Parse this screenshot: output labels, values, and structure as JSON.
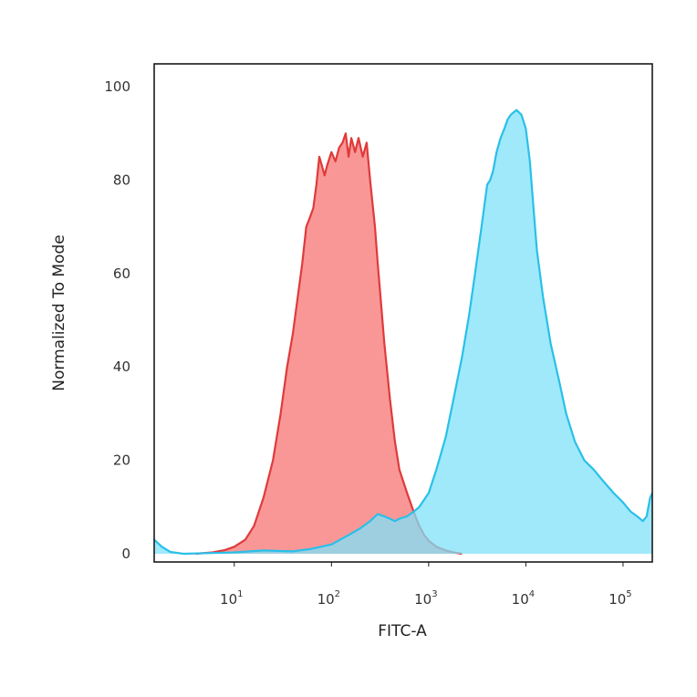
{
  "chart_data": {
    "type": "area",
    "xlabel": "FITC-A",
    "ylabel": "Normalized To Mode",
    "xscale": "log",
    "xlim": [
      1.5,
      200000
    ],
    "ylim": [
      0,
      100
    ],
    "x_ticks": [
      {
        "value": 10,
        "base": "10",
        "exp": "1"
      },
      {
        "value": 100,
        "base": "10",
        "exp": "2"
      },
      {
        "value": 1000,
        "base": "10",
        "exp": "3"
      },
      {
        "value": 10000,
        "base": "10",
        "exp": "4"
      },
      {
        "value": 100000,
        "base": "10",
        "exp": "5"
      }
    ],
    "y_ticks": [
      0,
      20,
      40,
      60,
      80,
      100
    ],
    "grid": false,
    "legend": "none",
    "series": [
      {
        "color": "#e03a3a",
        "fill": "#f99797",
        "points": [
          [
            4,
            0
          ],
          [
            6,
            0.3
          ],
          [
            8,
            0.8
          ],
          [
            10,
            1.5
          ],
          [
            13,
            3
          ],
          [
            16,
            6
          ],
          [
            20,
            12
          ],
          [
            25,
            20
          ],
          [
            30,
            30
          ],
          [
            35,
            40
          ],
          [
            40,
            47
          ],
          [
            45,
            55
          ],
          [
            50,
            62
          ],
          [
            55,
            70
          ],
          [
            60,
            72
          ],
          [
            65,
            74
          ],
          [
            70,
            79
          ],
          [
            75,
            85
          ],
          [
            80,
            83
          ],
          [
            85,
            81
          ],
          [
            90,
            83
          ],
          [
            100,
            86
          ],
          [
            110,
            84
          ],
          [
            120,
            87
          ],
          [
            130,
            88
          ],
          [
            140,
            90
          ],
          [
            150,
            85
          ],
          [
            160,
            89
          ],
          [
            175,
            86
          ],
          [
            190,
            89
          ],
          [
            210,
            85
          ],
          [
            230,
            88
          ],
          [
            250,
            80
          ],
          [
            280,
            70
          ],
          [
            300,
            62
          ],
          [
            320,
            55
          ],
          [
            350,
            45
          ],
          [
            400,
            33
          ],
          [
            450,
            24
          ],
          [
            500,
            18
          ],
          [
            600,
            13
          ],
          [
            700,
            9
          ],
          [
            800,
            6
          ],
          [
            900,
            4
          ],
          [
            1000,
            2.8
          ],
          [
            1200,
            1.5
          ],
          [
            1500,
            0.7
          ],
          [
            1800,
            0.3
          ],
          [
            2200,
            0
          ]
        ]
      },
      {
        "color": "#29c0e8",
        "fill": "#7fe2fa",
        "points": [
          [
            1.5,
            3
          ],
          [
            1.8,
            1.5
          ],
          [
            2.2,
            0.4
          ],
          [
            3,
            0
          ],
          [
            10,
            0.3
          ],
          [
            20,
            0.7
          ],
          [
            40,
            0.5
          ],
          [
            60,
            1
          ],
          [
            100,
            2
          ],
          [
            150,
            4
          ],
          [
            200,
            5.5
          ],
          [
            250,
            7
          ],
          [
            300,
            8.5
          ],
          [
            350,
            8
          ],
          [
            400,
            7.5
          ],
          [
            450,
            7
          ],
          [
            500,
            7.5
          ],
          [
            600,
            8
          ],
          [
            700,
            9
          ],
          [
            800,
            10
          ],
          [
            1000,
            13
          ],
          [
            1200,
            18
          ],
          [
            1500,
            25
          ],
          [
            1800,
            33
          ],
          [
            2200,
            42
          ],
          [
            2600,
            51
          ],
          [
            3000,
            60
          ],
          [
            3500,
            70
          ],
          [
            4000,
            79
          ],
          [
            4300,
            80
          ],
          [
            4600,
            82
          ],
          [
            5000,
            86
          ],
          [
            5500,
            89
          ],
          [
            6000,
            91
          ],
          [
            6500,
            93
          ],
          [
            7000,
            94
          ],
          [
            8000,
            95
          ],
          [
            9000,
            94
          ],
          [
            10000,
            91
          ],
          [
            11000,
            84
          ],
          [
            12000,
            74
          ],
          [
            13000,
            65
          ],
          [
            15000,
            55
          ],
          [
            18000,
            45
          ],
          [
            22000,
            37
          ],
          [
            26000,
            30
          ],
          [
            32000,
            24
          ],
          [
            40000,
            20
          ],
          [
            50000,
            18
          ],
          [
            60000,
            16
          ],
          [
            80000,
            13
          ],
          [
            100000,
            11
          ],
          [
            120000,
            9
          ],
          [
            140000,
            8
          ],
          [
            160000,
            7
          ],
          [
            175000,
            8
          ],
          [
            190000,
            12
          ],
          [
            200000,
            13
          ]
        ]
      }
    ]
  }
}
